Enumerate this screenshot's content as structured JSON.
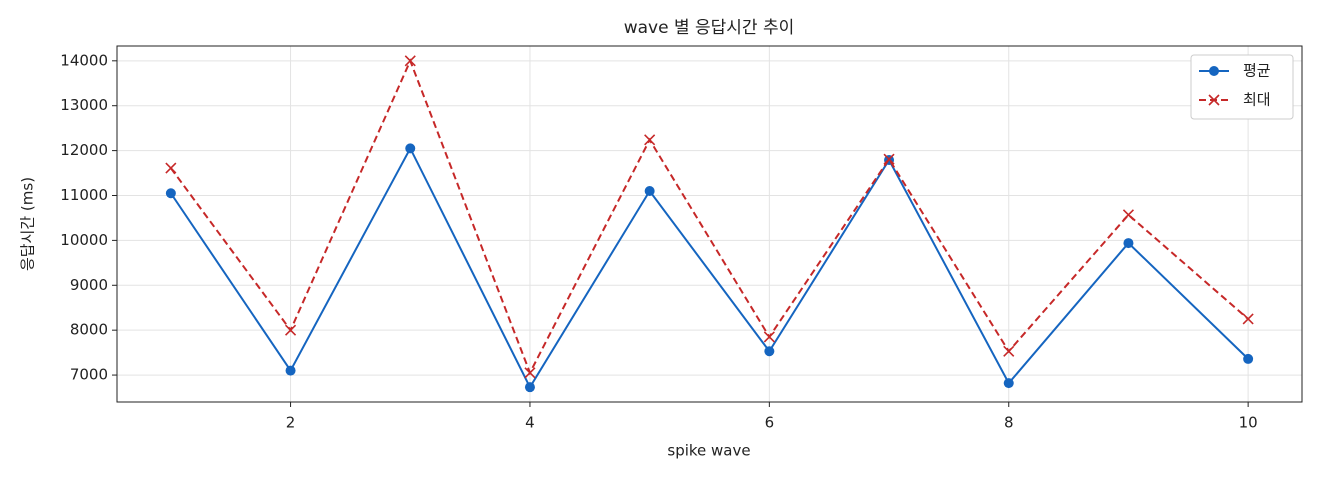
{
  "chart_data": {
    "type": "line",
    "title": "wave 별 응답시간 추이",
    "xlabel": "spike wave",
    "ylabel": "응답시간 (ms)",
    "x": [
      1,
      2,
      3,
      4,
      5,
      6,
      7,
      8,
      9,
      10
    ],
    "series": [
      {
        "name": "평균",
        "color": "#1565c0",
        "marker": "o",
        "linestyle": "solid",
        "values": [
          11050,
          7100,
          12050,
          6730,
          11100,
          7530,
          11790,
          6820,
          9940,
          7360
        ]
      },
      {
        "name": "최대",
        "color": "#c62828",
        "marker": "x",
        "linestyle": "dashed",
        "values": [
          11610,
          8000,
          14000,
          7050,
          12240,
          7850,
          11810,
          7530,
          10570,
          8250
        ]
      }
    ],
    "xlim": [
      0.55,
      10.45
    ],
    "xticks": [
      2,
      4,
      6,
      8,
      10
    ],
    "ylim": [
      6400,
      14330
    ],
    "yticks": [
      7000,
      8000,
      9000,
      10000,
      11000,
      12000,
      13000,
      14000
    ],
    "grid": true,
    "legend": "upper right"
  }
}
